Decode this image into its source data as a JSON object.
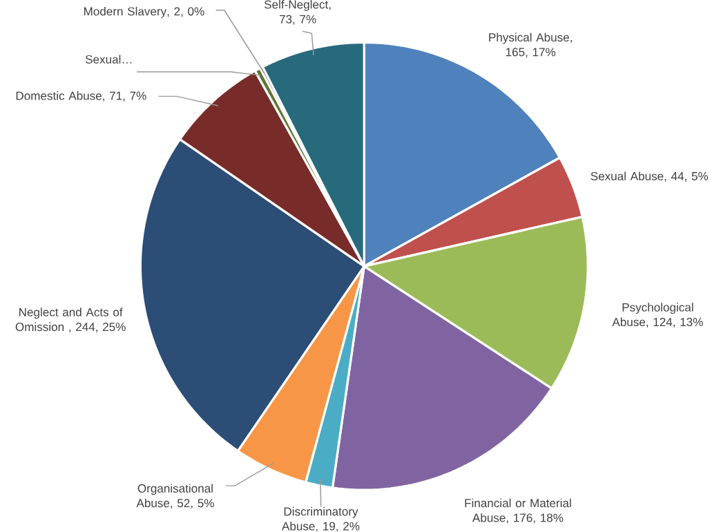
{
  "chart_data": {
    "type": "pie",
    "categories": [
      "Physical Abuse",
      "Sexual Abuse",
      "Psychological Abuse",
      "Financial or Material Abuse",
      "Discriminatory Abuse",
      "Organisational Abuse",
      "Neglect and Acts of Omission ",
      "Domestic Abuse",
      "Sexual…",
      "Modern Slavery",
      "Self-Neglect"
    ],
    "values": [
      165,
      44,
      124,
      176,
      19,
      52,
      244,
      71,
      4,
      2,
      73
    ],
    "value_labels": [
      ", 165, 17%",
      ", 44, 5%",
      ", 124, 13%",
      ", 176, 18%",
      ", 19, 2%",
      ", 52, 5%",
      ", 244, 25%",
      ", 71, 7%",
      null,
      ", 2, 0%",
      ", 73, 7%"
    ],
    "colors": [
      "#4f81bd",
      "#c0504d",
      "#9bbb59",
      "#8064a2",
      "#4bacc6",
      "#f79646",
      "#2c4d75",
      "#772c2a",
      "#5f7530",
      "#4d3b62",
      "#276a7c"
    ]
  }
}
